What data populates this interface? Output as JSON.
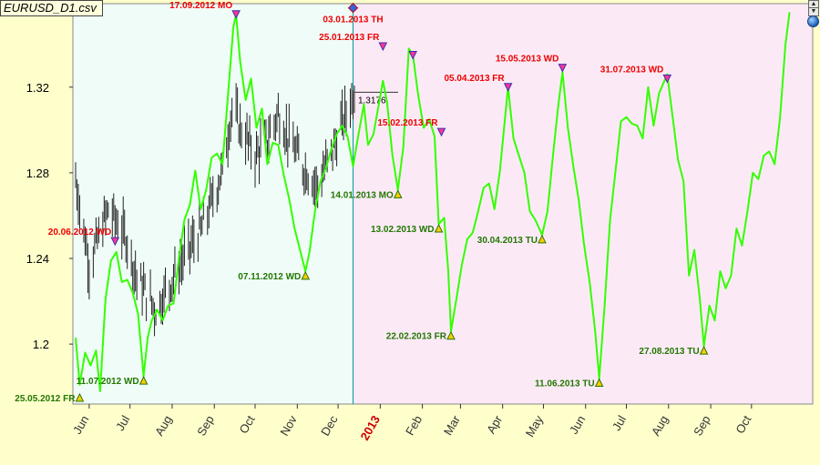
{
  "window": {
    "title": "EURUSD_D1.csv"
  },
  "colors": {
    "history_bg": "#f0fcf8",
    "forecast_bg": "#fbeaf6",
    "outer_bg": "#ffffcc",
    "forecast_line": "#33ff00",
    "price_bars": "#222222",
    "high_label": "#ee0000",
    "low_label": "#227700",
    "divider": "#009999",
    "year_label": "#cc0000"
  },
  "chart_data": {
    "type": "line",
    "title": "EURUSD_D1.csv",
    "ylim": [
      1.172,
      1.359
    ],
    "yticks": [
      1.2,
      1.24,
      1.28,
      1.32
    ],
    "ytick_labels": [
      "1.2",
      "1.24",
      "1.28",
      "1.32"
    ],
    "xlim": [
      "2012-05-20",
      "2013-11-15"
    ],
    "x_labels": [
      {
        "date": "2012-06-01",
        "label": "Jun"
      },
      {
        "date": "2012-07-01",
        "label": "Jul"
      },
      {
        "date": "2012-08-01",
        "label": "Aug"
      },
      {
        "date": "2012-09-01",
        "label": "Sep"
      },
      {
        "date": "2012-10-01",
        "label": "Oct"
      },
      {
        "date": "2012-11-01",
        "label": "Nov"
      },
      {
        "date": "2012-12-01",
        "label": "Dec"
      },
      {
        "date": "2013-01-01",
        "label": "2013",
        "year": true
      },
      {
        "date": "2013-02-01",
        "label": "Feb"
      },
      {
        "date": "2013-03-01",
        "label": "Mar"
      },
      {
        "date": "2013-04-01",
        "label": "Apr"
      },
      {
        "date": "2013-05-01",
        "label": "May"
      },
      {
        "date": "2013-06-01",
        "label": "Jun"
      },
      {
        "date": "2013-07-01",
        "label": "Jul"
      },
      {
        "date": "2013-08-01",
        "label": "Aug"
      },
      {
        "date": "2013-09-01",
        "label": "Sep"
      },
      {
        "date": "2013-10-01",
        "label": "Oct"
      }
    ],
    "forecast_start": "2012-12-12",
    "last_price": {
      "date": "2012-12-13",
      "value": 1.3176,
      "label": "1.3176"
    },
    "grid": false,
    "legend": "none",
    "series": [
      {
        "kind": "ohlc",
        "anchors": [
          [
            "2012-05-22",
            1.277
          ],
          [
            "2012-06-01",
            1.237
          ],
          [
            "2012-06-15",
            1.263
          ],
          [
            "2012-06-28",
            1.25
          ],
          [
            "2012-07-06",
            1.231
          ],
          [
            "2012-07-20",
            1.216
          ],
          [
            "2012-07-30",
            1.228
          ],
          [
            "2012-08-07",
            1.238
          ],
          [
            "2012-08-23",
            1.254
          ],
          [
            "2012-09-07",
            1.281
          ],
          [
            "2012-09-14",
            1.31
          ],
          [
            "2012-09-21",
            1.3
          ],
          [
            "2012-10-01",
            1.288
          ],
          [
            "2012-10-10",
            1.295
          ],
          [
            "2012-10-18",
            1.308
          ],
          [
            "2012-10-25",
            1.297
          ],
          [
            "2012-11-05",
            1.283
          ],
          [
            "2012-11-16",
            1.274
          ],
          [
            "2012-11-28",
            1.292
          ],
          [
            "2012-12-05",
            1.305
          ],
          [
            "2012-12-13",
            1.318
          ]
        ]
      },
      {
        "kind": "line",
        "points": [
          [
            "2012-05-22",
            1.203
          ],
          [
            "2012-05-25",
            1.181
          ],
          [
            "2012-05-29",
            1.196
          ],
          [
            "2012-06-02",
            1.19
          ],
          [
            "2012-06-06",
            1.197
          ],
          [
            "2012-06-09",
            1.178
          ],
          [
            "2012-06-13",
            1.221
          ],
          [
            "2012-06-17",
            1.239
          ],
          [
            "2012-06-21",
            1.243
          ],
          [
            "2012-06-25",
            1.229
          ],
          [
            "2012-06-29",
            1.23
          ],
          [
            "2012-07-03",
            1.224
          ],
          [
            "2012-07-07",
            1.214
          ],
          [
            "2012-07-11",
            1.185
          ],
          [
            "2012-07-14",
            1.203
          ],
          [
            "2012-07-17",
            1.211
          ],
          [
            "2012-07-21",
            1.216
          ],
          [
            "2012-07-25",
            1.211
          ],
          [
            "2012-07-29",
            1.218
          ],
          [
            "2012-08-02",
            1.219
          ],
          [
            "2012-08-06",
            1.24
          ],
          [
            "2012-08-10",
            1.258
          ],
          [
            "2012-08-14",
            1.265
          ],
          [
            "2012-08-18",
            1.281
          ],
          [
            "2012-08-22",
            1.263
          ],
          [
            "2012-08-26",
            1.272
          ],
          [
            "2012-08-30",
            1.287
          ],
          [
            "2012-09-03",
            1.289
          ],
          [
            "2012-09-07",
            1.284
          ],
          [
            "2012-09-11",
            1.316
          ],
          [
            "2012-09-15",
            1.348
          ],
          [
            "2012-09-17",
            1.354
          ],
          [
            "2012-09-20",
            1.332
          ],
          [
            "2012-09-24",
            1.314
          ],
          [
            "2012-09-28",
            1.324
          ],
          [
            "2012-10-02",
            1.301
          ],
          [
            "2012-10-06",
            1.31
          ],
          [
            "2012-10-10",
            1.284
          ],
          [
            "2012-10-14",
            1.294
          ],
          [
            "2012-10-18",
            1.293
          ],
          [
            "2012-10-22",
            1.279
          ],
          [
            "2012-10-26",
            1.268
          ],
          [
            "2012-10-30",
            1.254
          ],
          [
            "2012-11-03",
            1.244
          ],
          [
            "2012-11-07",
            1.234
          ],
          [
            "2012-11-10",
            1.243
          ],
          [
            "2012-11-14",
            1.262
          ],
          [
            "2012-11-18",
            1.276
          ],
          [
            "2012-11-22",
            1.282
          ],
          [
            "2012-11-26",
            1.291
          ],
          [
            "2012-11-30",
            1.298
          ],
          [
            "2012-12-04",
            1.302
          ],
          [
            "2012-12-08",
            1.297
          ],
          [
            "2012-12-12",
            1.283
          ],
          [
            "2012-12-16",
            1.298
          ],
          [
            "2012-12-20",
            1.312
          ],
          [
            "2012-12-23",
            1.293
          ],
          [
            "2012-12-27",
            1.298
          ],
          [
            "2012-12-31",
            1.312
          ],
          [
            "2013-01-03",
            1.323
          ],
          [
            "2013-01-06",
            1.313
          ],
          [
            "2013-01-10",
            1.288
          ],
          [
            "2013-01-14",
            1.272
          ],
          [
            "2013-01-18",
            1.292
          ],
          [
            "2013-01-22",
            1.338
          ],
          [
            "2013-01-25",
            1.335
          ],
          [
            "2013-01-29",
            1.316
          ],
          [
            "2013-02-02",
            1.301
          ],
          [
            "2013-02-06",
            1.305
          ],
          [
            "2013-02-10",
            1.297
          ],
          [
            "2013-02-13",
            1.256
          ],
          [
            "2013-02-17",
            1.259
          ],
          [
            "2013-02-20",
            1.234
          ],
          [
            "2013-02-22",
            1.206
          ],
          [
            "2013-02-26",
            1.221
          ],
          [
            "2013-03-02",
            1.237
          ],
          [
            "2013-03-06",
            1.249
          ],
          [
            "2013-03-10",
            1.252
          ],
          [
            "2013-03-14",
            1.262
          ],
          [
            "2013-03-18",
            1.273
          ],
          [
            "2013-03-22",
            1.275
          ],
          [
            "2013-03-26",
            1.263
          ],
          [
            "2013-03-30",
            1.281
          ],
          [
            "2013-04-05",
            1.32
          ],
          [
            "2013-04-09",
            1.296
          ],
          [
            "2013-04-13",
            1.288
          ],
          [
            "2013-04-17",
            1.28
          ],
          [
            "2013-04-21",
            1.262
          ],
          [
            "2013-04-25",
            1.258
          ],
          [
            "2013-04-30",
            1.251
          ],
          [
            "2013-05-04",
            1.262
          ],
          [
            "2013-05-08",
            1.288
          ],
          [
            "2013-05-12",
            1.312
          ],
          [
            "2013-05-15",
            1.327
          ],
          [
            "2013-05-19",
            1.301
          ],
          [
            "2013-05-23",
            1.283
          ],
          [
            "2013-05-27",
            1.267
          ],
          [
            "2013-05-31",
            1.246
          ],
          [
            "2013-06-04",
            1.229
          ],
          [
            "2013-06-08",
            1.206
          ],
          [
            "2013-06-11",
            1.184
          ],
          [
            "2013-06-15",
            1.218
          ],
          [
            "2013-06-19",
            1.258
          ],
          [
            "2013-06-23",
            1.281
          ],
          [
            "2013-06-27",
            1.304
          ],
          [
            "2013-07-01",
            1.306
          ],
          [
            "2013-07-05",
            1.303
          ],
          [
            "2013-07-09",
            1.302
          ],
          [
            "2013-07-13",
            1.296
          ],
          [
            "2013-07-17",
            1.32
          ],
          [
            "2013-07-21",
            1.302
          ],
          [
            "2013-07-25",
            1.317
          ],
          [
            "2013-07-31",
            1.326
          ],
          [
            "2013-08-04",
            1.306
          ],
          [
            "2013-08-08",
            1.286
          ],
          [
            "2013-08-12",
            1.276
          ],
          [
            "2013-08-16",
            1.232
          ],
          [
            "2013-08-20",
            1.244
          ],
          [
            "2013-08-24",
            1.221
          ],
          [
            "2013-08-27",
            1.199
          ],
          [
            "2013-08-31",
            1.218
          ],
          [
            "2013-09-04",
            1.211
          ],
          [
            "2013-09-08",
            1.234
          ],
          [
            "2013-09-12",
            1.226
          ],
          [
            "2013-09-16",
            1.232
          ],
          [
            "2013-09-20",
            1.254
          ],
          [
            "2013-09-24",
            1.246
          ],
          [
            "2013-09-28",
            1.262
          ],
          [
            "2013-10-02",
            1.28
          ],
          [
            "2013-10-06",
            1.277
          ],
          [
            "2013-10-10",
            1.288
          ],
          [
            "2013-10-14",
            1.29
          ],
          [
            "2013-10-18",
            1.284
          ],
          [
            "2013-10-22",
            1.306
          ],
          [
            "2013-10-26",
            1.34
          ],
          [
            "2013-10-29",
            1.355
          ]
        ]
      }
    ],
    "annotations": [
      {
        "date": "2012-09-17",
        "value": 1.354,
        "label": "17.09.2012 MO",
        "kind": "high"
      },
      {
        "date": "2012-06-20",
        "value": 1.248,
        "label": "20.06.2012 WD",
        "kind": "high"
      },
      {
        "date": "2012-12-12",
        "value": 1.357,
        "label": "03.01.2013 TH",
        "kind": "current"
      },
      {
        "date": "2013-01-03",
        "value": 1.339,
        "label": "25.01.2013 FR",
        "kind": "high"
      },
      {
        "date": "2013-01-25",
        "value": 1.335,
        "label": "",
        "kind": "high"
      },
      {
        "date": "2013-02-15",
        "value": 1.299,
        "label": "15.02.2013 FR",
        "kind": "high"
      },
      {
        "date": "2013-04-05",
        "value": 1.32,
        "label": "05.04.2013 FR",
        "kind": "high"
      },
      {
        "date": "2013-05-15",
        "value": 1.329,
        "label": "15.05.2013 WD",
        "kind": "high"
      },
      {
        "date": "2013-07-31",
        "value": 1.324,
        "label": "31.07.2013 WD",
        "kind": "high"
      },
      {
        "date": "2012-05-25",
        "value": 1.175,
        "label": "25.05.2012 FR",
        "kind": "low"
      },
      {
        "date": "2012-07-11",
        "value": 1.183,
        "label": "11.07.2012 WD",
        "kind": "low"
      },
      {
        "date": "2012-11-07",
        "value": 1.232,
        "label": "07.11.2012 WD",
        "kind": "low"
      },
      {
        "date": "2013-01-14",
        "value": 1.27,
        "label": "14.01.2013 MO",
        "kind": "low"
      },
      {
        "date": "2013-02-13",
        "value": 1.254,
        "label": "13.02.2013 WD",
        "kind": "low"
      },
      {
        "date": "2013-02-22",
        "value": 1.204,
        "label": "22.02.2013 FR",
        "kind": "low"
      },
      {
        "date": "2013-04-30",
        "value": 1.249,
        "label": "30.04.2013 TU",
        "kind": "low"
      },
      {
        "date": "2013-06-11",
        "value": 1.182,
        "label": "11.06.2013 TU",
        "kind": "low"
      },
      {
        "date": "2013-08-27",
        "value": 1.197,
        "label": "27.08.2013 TU",
        "kind": "low"
      }
    ]
  }
}
